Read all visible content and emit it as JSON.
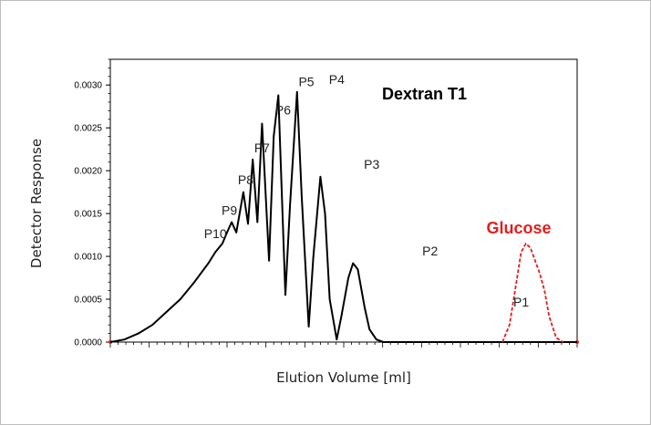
{
  "chart_data": {
    "type": "line",
    "title": "Dextran T1",
    "xlabel": "Elution Volume [ml]",
    "ylabel": "Detector Response",
    "ylim": [
      0,
      0.0033
    ],
    "xlim": [
      0,
      100
    ],
    "yticks": [
      "0.0000",
      "0.0005",
      "0.0010",
      "0.0015",
      "0.0020",
      "0.0025",
      "0.0030"
    ],
    "ytick_values": [
      0,
      0.0005,
      0.001,
      0.0015,
      0.002,
      0.0025,
      0.003
    ],
    "x_tick_labels_shown": false,
    "grid": false,
    "series": [
      {
        "color": "#000000",
        "x": [
          0,
          3,
          6,
          9,
          12,
          15,
          18,
          21,
          22.5,
          24,
          25,
          26,
          27,
          28.5,
          29.5,
          30.5,
          31.5,
          32.5,
          34,
          35,
          36,
          37.5,
          38.5,
          40,
          41,
          42.5,
          43.5,
          45,
          46,
          47,
          48.5,
          49.5,
          51,
          52,
          53,
          54.5,
          55.5,
          57,
          58.5,
          60,
          62,
          64,
          65.5,
          67,
          69,
          70.5,
          73,
          76,
          79,
          82,
          84,
          86,
          88,
          90,
          93,
          96,
          100
        ],
        "y": [
          0,
          3e-05,
          0.0001,
          0.0002,
          0.00035,
          0.0005,
          0.0007,
          0.00092,
          0.00105,
          0.00115,
          0.00128,
          0.0014,
          0.00128,
          0.00175,
          0.00138,
          0.00213,
          0.0014,
          0.00255,
          0.00095,
          0.0024,
          0.00288,
          0.00055,
          0.0016,
          0.00292,
          0.0017,
          0.00018,
          0.001,
          0.00193,
          0.0015,
          0.0005,
          3e-05,
          0.0003,
          0.00075,
          0.00092,
          0.00085,
          0.0004,
          0.00015,
          3e-05,
          0.0,
          0.0,
          0.0,
          0.0,
          0.0,
          0.0,
          0.0,
          0.0,
          0.0,
          0.0,
          0.0,
          0.0,
          0.0,
          0.0,
          0.0,
          0.0,
          0.0,
          0.0,
          0.0
        ]
      },
      {
        "color": "#e02020",
        "x": [
          84,
          85.5,
          87,
          88,
          89,
          90,
          91,
          92,
          93,
          94,
          95.5,
          97
        ],
        "y": [
          0.0,
          0.0002,
          0.0007,
          0.00105,
          0.00115,
          0.0011,
          0.00095,
          0.0008,
          0.0006,
          0.0003,
          5e-05,
          0.0
        ]
      }
    ],
    "annotations": [
      {
        "text": "P10",
        "x": 22.5,
        "y": 0.00115
      },
      {
        "text": "P9",
        "x": 25.5,
        "y": 0.00142
      },
      {
        "text": "P8",
        "x": 29.0,
        "y": 0.00178
      },
      {
        "text": "P7",
        "x": 32.5,
        "y": 0.00215
      },
      {
        "text": "P6",
        "x": 37.0,
        "y": 0.00259
      },
      {
        "text": "P5",
        "x": 42.0,
        "y": 0.00292
      },
      {
        "text": "P4",
        "x": 48.5,
        "y": 0.00295
      },
      {
        "text": "P3",
        "x": 56.0,
        "y": 0.00196
      },
      {
        "text": "P2",
        "x": 68.5,
        "y": 0.00095
      },
      {
        "text": "P1",
        "x": 88.0,
        "y": 0.00035
      },
      {
        "text": "Glucose",
        "x": 87.5,
        "y": 0.00118,
        "color": "#e02020"
      }
    ]
  }
}
